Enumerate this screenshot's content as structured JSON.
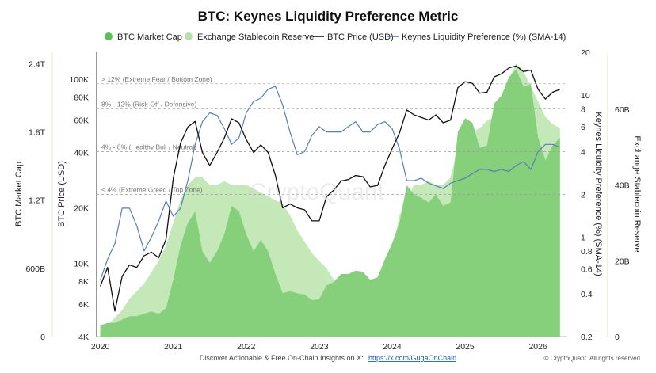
{
  "chart_data": {
    "type": "line",
    "title": "BTC: Keynes Liquidity Preference Metric",
    "legend": {
      "placement": "top",
      "items": [
        {
          "name": "BTC Market Cap",
          "marker": "circle",
          "color": "#5cbf5c"
        },
        {
          "name": "Exchange Stablecoin Reserve",
          "marker": "circle",
          "color": "#b5e2a8"
        },
        {
          "name": "BTC Price (USD)",
          "marker": "line",
          "color": "#111111"
        },
        {
          "name": "Keynes Liquidity Preference (%) (SMA-14)",
          "marker": "line",
          "color": "#5a7fb5"
        }
      ]
    },
    "x_ticks": [
      "2020",
      "2021",
      "2022",
      "2023",
      "2024",
      "2025",
      "2026"
    ],
    "axes": {
      "market_cap": {
        "label": "BTC Market Cap",
        "ticks": [
          "0",
          "600B",
          "1.2T",
          "1.8T",
          "2.4T"
        ],
        "range": [
          0,
          2.5
        ],
        "unit": "T USD"
      },
      "price": {
        "label": "BTC Price (USD)",
        "scale": "log",
        "ticks": [
          "4K",
          "6K",
          "8K",
          "10K",
          "20K",
          "40K",
          "60K",
          "80K",
          "100K"
        ],
        "range": [
          4000,
          140000
        ]
      },
      "keynes": {
        "label": "Keynes Liquidity Preference (%) (SMA-14)",
        "scale": "log",
        "ticks": [
          "0.2",
          "0.4",
          "0.6",
          "0.8",
          "1",
          "2",
          "4",
          "6",
          "8",
          "10",
          "20"
        ],
        "range": [
          0.2,
          20
        ]
      },
      "stablecoin": {
        "label": "Exchange Stablecoin Reserve",
        "ticks": [
          "0",
          "20B",
          "40B",
          "60B"
        ],
        "range": [
          0,
          75
        ],
        "unit": "B USD"
      }
    },
    "zones": [
      {
        "label": "> 12% (Extreme Fear / Bottom Zone)",
        "value": 12
      },
      {
        "label": "8% - 12% (Risk-Off / Defensive)",
        "value": 8
      },
      {
        "label": "4% - 8% (Healthy Bull / Neutral)",
        "value": 4
      },
      {
        "label": "< 4% (Extreme Greed / Top Zone)",
        "value": 2
      }
    ],
    "x": [
      2020.0,
      2020.1,
      2020.2,
      2020.3,
      2020.4,
      2020.5,
      2020.6,
      2020.7,
      2020.8,
      2020.9,
      2021.0,
      2021.1,
      2021.2,
      2021.3,
      2021.4,
      2021.5,
      2021.6,
      2021.7,
      2021.8,
      2021.9,
      2022.0,
      2022.1,
      2022.2,
      2022.3,
      2022.4,
      2022.5,
      2022.6,
      2022.7,
      2022.8,
      2022.9,
      2023.0,
      2023.1,
      2023.2,
      2023.3,
      2023.4,
      2023.5,
      2023.6,
      2023.7,
      2023.8,
      2023.9,
      2024.0,
      2024.1,
      2024.2,
      2024.3,
      2024.4,
      2024.5,
      2024.6,
      2024.7,
      2024.8,
      2024.9,
      2025.0,
      2025.1,
      2025.2,
      2025.3,
      2025.4,
      2025.5,
      2025.6,
      2025.7,
      2025.8,
      2025.9,
      2026.0,
      2026.1,
      2026.2,
      2026.3
    ],
    "series": [
      {
        "name": "BTC Price (USD)",
        "values": [
          7500,
          9500,
          5500,
          8500,
          9800,
          9500,
          11000,
          11500,
          10700,
          13500,
          29000,
          45000,
          55000,
          59000,
          40000,
          34000,
          40000,
          48000,
          61000,
          58000,
          47000,
          40000,
          44000,
          40000,
          30000,
          20000,
          21000,
          20000,
          19500,
          17000,
          17000,
          23000,
          25000,
          28000,
          28500,
          30000,
          29500,
          26000,
          26500,
          34000,
          42000,
          51000,
          68000,
          64000,
          62000,
          60000,
          64000,
          58000,
          60000,
          90000,
          97000,
          95000,
          84000,
          85000,
          103000,
          107000,
          115000,
          118000,
          110000,
          112000,
          88000,
          78000,
          85000,
          88000
        ]
      },
      {
        "name": "Keynes Liquidity Preference (%) (SMA-14)",
        "values": [
          0.5,
          0.7,
          0.9,
          1.6,
          1.6,
          1.2,
          0.8,
          1.0,
          1.3,
          1.8,
          1.4,
          1.6,
          2.5,
          4.5,
          6.5,
          7.5,
          7.2,
          5.8,
          4.5,
          5.0,
          7.5,
          9.0,
          9.5,
          11.0,
          11.5,
          8.5,
          5.5,
          3.8,
          4.0,
          5.2,
          6.0,
          5.5,
          5.5,
          5.5,
          6.0,
          6.5,
          5.5,
          5.5,
          6.2,
          6.5,
          5.8,
          4.2,
          2.5,
          2.5,
          2.6,
          2.4,
          2.3,
          2.2,
          2.4,
          2.5,
          2.6,
          2.8,
          3.0,
          3.0,
          2.9,
          3.0,
          2.9,
          3.2,
          3.4,
          3.0,
          4.0,
          4.5,
          4.5,
          4.3
        ]
      },
      {
        "name": "BTC Market Cap",
        "values": [
          0.1,
          0.12,
          0.12,
          0.15,
          0.18,
          0.18,
          0.2,
          0.22,
          0.2,
          0.25,
          0.5,
          0.8,
          1.0,
          1.1,
          0.75,
          0.65,
          0.75,
          0.9,
          1.15,
          1.1,
          0.9,
          0.75,
          0.85,
          0.75,
          0.55,
          0.38,
          0.4,
          0.38,
          0.37,
          0.32,
          0.33,
          0.45,
          0.48,
          0.55,
          0.55,
          0.58,
          0.57,
          0.5,
          0.52,
          0.68,
          0.82,
          1.0,
          1.33,
          1.25,
          1.22,
          1.18,
          1.25,
          1.15,
          1.18,
          1.8,
          1.92,
          1.88,
          1.66,
          1.68,
          2.05,
          2.12,
          2.28,
          2.35,
          2.2,
          2.22,
          1.75,
          1.55,
          1.68,
          1.75
        ]
      },
      {
        "name": "Exchange Stablecoin Reserve",
        "values": [
          2,
          3,
          5,
          7,
          10,
          12,
          14,
          17,
          20,
          24,
          30,
          36,
          40,
          42,
          42,
          40,
          40,
          41,
          40,
          40,
          40,
          39,
          38,
          37,
          36,
          35,
          32,
          28,
          25,
          22,
          20,
          18,
          15,
          12,
          11,
          11,
          11,
          12,
          14,
          18,
          22,
          32,
          36,
          40,
          40,
          41,
          40,
          40,
          42,
          50,
          52,
          54,
          55,
          57,
          58,
          62,
          68,
          72,
          70,
          66,
          62,
          58,
          56,
          55
        ]
      }
    ]
  },
  "footer": {
    "text": "Discover Actionable & Free On-Chain Insights on X:",
    "link": "https://x.com/GugaOnChain",
    "copyright": "© CryptoQuant. All rights reserved"
  },
  "watermark": "CryptoQuant"
}
